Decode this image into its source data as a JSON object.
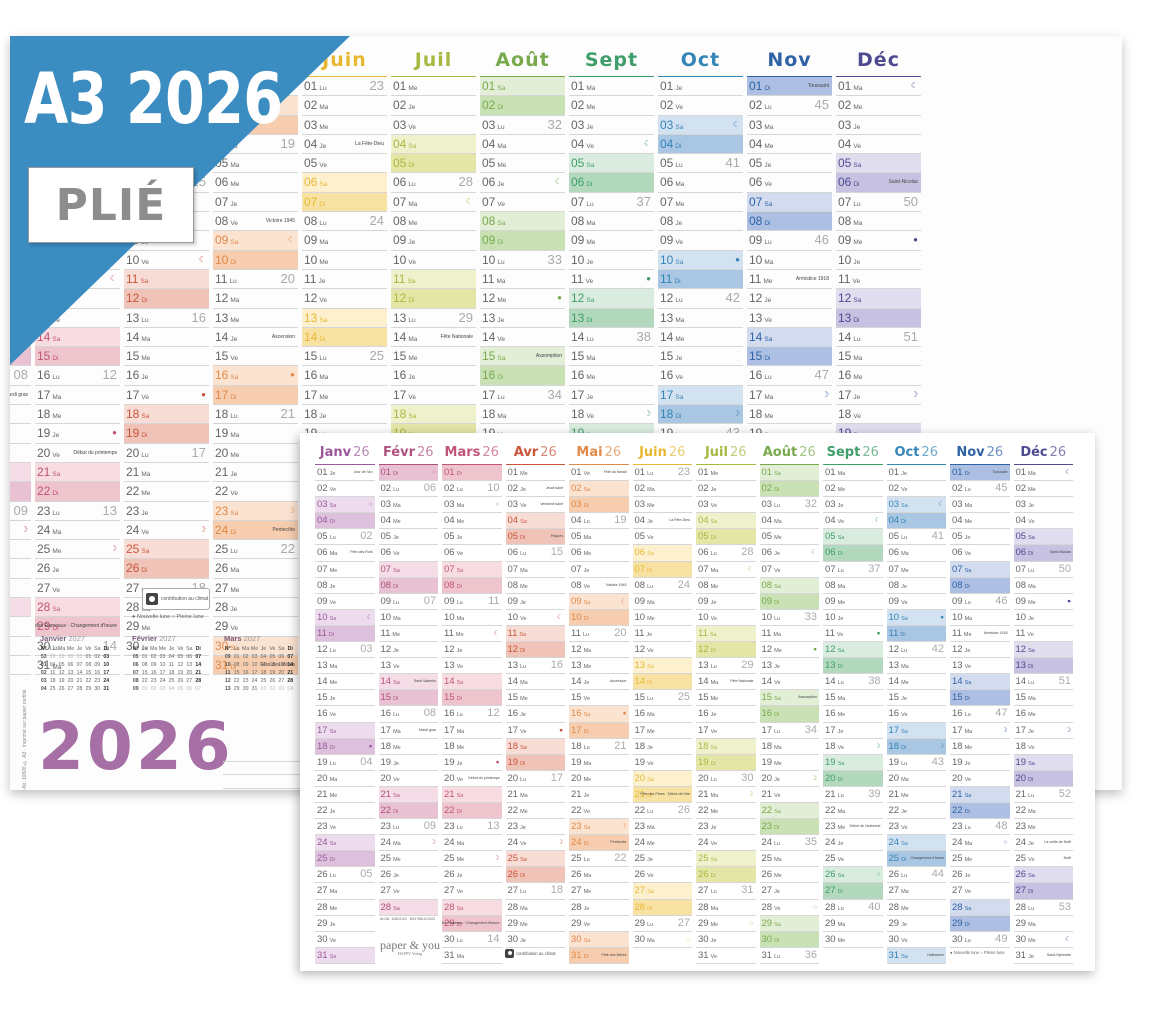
{
  "banner": {
    "title": "A3 2026",
    "tag": "PLIÉ",
    "color": "#3a8cc1"
  },
  "back_poster": {
    "year": "2026",
    "year_color": "#a66fa6",
    "moon_legend": "● Nouvelle lune  ○ Pleine lune",
    "climate_label": "contribution au climat",
    "vertical_note": "Art-Nr. 10826 © A3 · Imprimé sur papier certifié",
    "months": [
      {
        "name": "Janv",
        "color": "#9b5a9b",
        "we": "#ecdced",
        "su": "#dcc0dc"
      },
      {
        "name": "Févr",
        "color": "#b0527f",
        "we": "#f4dde6",
        "su": "#e8c2d2"
      },
      {
        "name": "Mars",
        "color": "#c05577",
        "we": "#f7dde2",
        "su": "#eec4cd"
      },
      {
        "name": "Avr",
        "color": "#c9553b",
        "we": "#f8ddd7",
        "su": "#f0c3b8"
      },
      {
        "name": "Mai",
        "color": "#e08a4a",
        "we": "#fbe3d2",
        "su": "#f6cdae"
      },
      {
        "name": "Juin",
        "color": "#e8b832",
        "we": "#fcf0cf",
        "su": "#f8e2a3"
      },
      {
        "name": "Juil",
        "color": "#a8b842",
        "we": "#eff1cc",
        "su": "#e3e6a6"
      },
      {
        "name": "Août",
        "color": "#78aa4d",
        "we": "#e2eed5",
        "su": "#c9e1b4"
      },
      {
        "name": "Sept",
        "color": "#3f9e6a",
        "we": "#d9ecdf",
        "su": "#b2d9bd"
      },
      {
        "name": "Oct",
        "color": "#3485b8",
        "we": "#d3e2f0",
        "su": "#a9c6e2"
      },
      {
        "name": "Nov",
        "color": "#2f63a6",
        "we": "#d3dcef",
        "su": "#adc0e3"
      },
      {
        "name": "Déc",
        "color": "#4e4a90",
        "we": "#e0ddef",
        "su": "#c7c2e2"
      }
    ],
    "mini_calendars": [
      {
        "title": "Janvier",
        "year": "2027",
        "header": [
          "N°",
          "Lu",
          "Ma",
          "Me",
          "Je",
          "Ve",
          "Sa",
          "Di"
        ],
        "rows": [
          [
            "53",
            "28",
            "29",
            "30",
            "31",
            "01",
            "02",
            "03"
          ],
          [
            "01",
            "04",
            "05",
            "06",
            "07",
            "08",
            "09",
            "10"
          ],
          [
            "02",
            "11",
            "12",
            "13",
            "14",
            "15",
            "16",
            "17"
          ],
          [
            "03",
            "18",
            "19",
            "20",
            "21",
            "22",
            "23",
            "24"
          ],
          [
            "04",
            "25",
            "26",
            "27",
            "28",
            "29",
            "30",
            "31"
          ]
        ]
      },
      {
        "title": "Février",
        "year": "2027",
        "header": [
          "N°",
          "Lu",
          "Ma",
          "Me",
          "Je",
          "Ve",
          "Sa",
          "Di"
        ],
        "rows": [
          [
            "05",
            "01",
            "02",
            "03",
            "04",
            "05",
            "06",
            "07"
          ],
          [
            "06",
            "08",
            "09",
            "10",
            "11",
            "12",
            "13",
            "14"
          ],
          [
            "07",
            "15",
            "16",
            "17",
            "18",
            "19",
            "20",
            "21"
          ],
          [
            "08",
            "22",
            "23",
            "24",
            "25",
            "26",
            "27",
            "28"
          ],
          [
            "09",
            "01",
            "02",
            "03",
            "04",
            "05",
            "06",
            "07"
          ]
        ]
      },
      {
        "title": "Mars",
        "year": "2027",
        "header": [
          "N°",
          "Lu",
          "Ma",
          "Me",
          "Je",
          "Ve",
          "Sa",
          "Di"
        ],
        "rows": [
          [
            "09",
            "01",
            "02",
            "03",
            "04",
            "05",
            "06",
            "07"
          ],
          [
            "10",
            "08",
            "09",
            "10",
            "11",
            "12",
            "13",
            "14"
          ],
          [
            "11",
            "15",
            "16",
            "17",
            "18",
            "19",
            "20",
            "21"
          ],
          [
            "12",
            "22",
            "23",
            "24",
            "25",
            "26",
            "27",
            "28"
          ],
          [
            "13",
            "29",
            "30",
            "31",
            "01",
            "02",
            "03",
            "04"
          ]
        ]
      }
    ]
  },
  "front_poster": {
    "year_suffix": "26",
    "art_number": "Art-Nr. 10813 A3 · DIN 956-6:2022",
    "brand": "paper & you",
    "brand_sub": "HAPPY Verlag",
    "climate_label": "contribution au climat",
    "moon_legend": "● Nouvelle lune  ○ Pleine lune"
  },
  "calendar": {
    "year": 2026,
    "weekday_abbr": [
      "Di",
      "Lu",
      "Ma",
      "Me",
      "Je",
      "Ve",
      "Sa"
    ],
    "events": {
      "1-1": "Jour de l'An",
      "1-6": "Fête des Rois",
      "2-14": "Saint-Valentin",
      "2-17": "Mardi gras",
      "3-20": "Début du printemps",
      "3-29": "Dimanche des Rameaux · Changement d'heure",
      "4-2": "Jeudi saint",
      "4-3": "Vendredi saint",
      "4-5": "Pâques",
      "4-6": "Lundi de Pâques",
      "5-1": "Fête du travail",
      "5-8": "Victoire 1945",
      "5-14": "Ascension",
      "5-24": "Pentecôte",
      "5-25": "Lundi de Pentecôte",
      "5-31": "Fête des Mères",
      "6-4": "La Fête-Dieu",
      "6-21": "Fête des Pères · Début de l'été",
      "7-14": "Fête Nationale",
      "8-15": "Assomption",
      "9-23": "Début de l'automne",
      "10-25": "Changement d'heure",
      "10-31": "Halloween",
      "11-1": "Toussaint",
      "11-11": "Armistice 1918",
      "12-6": "Saint-Nicolas",
      "12-21": "Début de l'hiver",
      "12-24": "La veille de Noël",
      "12-25": "Noël",
      "12-31": "Saint-Sylvestre"
    },
    "moons": {
      "1-3": "○",
      "1-10": "☾",
      "1-18": "●",
      "1-26": "☽",
      "2-1": "○",
      "2-9": "☾",
      "2-17": "●",
      "2-24": "☽",
      "3-3": "○",
      "3-11": "☾",
      "3-19": "●",
      "3-25": "☽",
      "4-2": "○",
      "4-10": "☾",
      "4-17": "●",
      "4-24": "☽",
      "5-1": "○",
      "5-9": "☾",
      "5-16": "●",
      "5-23": "☽",
      "5-31": "○",
      "6-8": "☾",
      "6-15": "●",
      "6-21": "☽",
      "6-30": "○",
      "7-7": "☾",
      "7-14": "●",
      "7-21": "☽",
      "7-29": "○",
      "8-6": "☾",
      "8-12": "●",
      "8-20": "☽",
      "8-28": "○",
      "9-4": "☾",
      "9-11": "●",
      "9-18": "☽",
      "9-26": "○",
      "10-3": "☾",
      "10-10": "●",
      "10-18": "☽",
      "10-26": "○",
      "11-1": "☾",
      "11-9": "●",
      "11-17": "☽",
      "11-24": "○",
      "12-1": "☾",
      "12-9": "●",
      "12-17": "☽",
      "12-24": "○",
      "12-30": "☾"
    }
  }
}
